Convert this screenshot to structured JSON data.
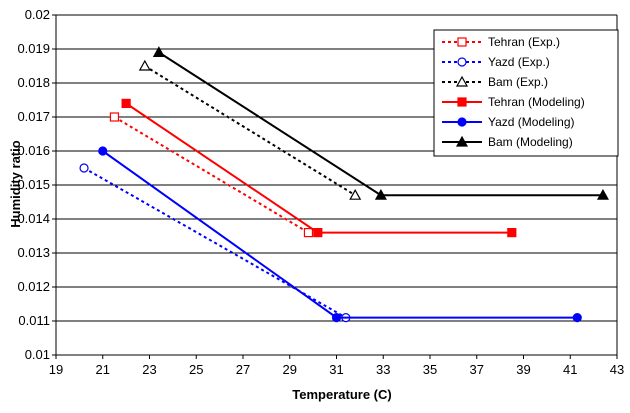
{
  "chart_data": {
    "type": "line",
    "title": "",
    "xlabel": "Temperature (C)",
    "ylabel": "Humidity ratio",
    "xlim": [
      19,
      43
    ],
    "ylim": [
      0.01,
      0.02
    ],
    "x_ticks": [
      "19",
      "21",
      "23",
      "25",
      "27",
      "29",
      "31",
      "33",
      "35",
      "37",
      "39",
      "41",
      "43"
    ],
    "y_ticks": [
      "0.01",
      "0.011",
      "0.012",
      "0.013",
      "0.014",
      "0.015",
      "0.016",
      "0.017",
      "0.018",
      "0.019",
      "0.02"
    ],
    "grid": {
      "horizontal": true,
      "vertical": false
    },
    "legend_position": "top-right",
    "series": [
      {
        "name": "Tehran (Exp.)",
        "color": "#ff0000",
        "dash": "dotted",
        "marker": "square-open",
        "points": [
          [
            21.5,
            0.017
          ],
          [
            29.8,
            0.0136
          ]
        ]
      },
      {
        "name": "Yazd (Exp.)",
        "color": "#0000ff",
        "dash": "dotted",
        "marker": "circle-open",
        "points": [
          [
            20.2,
            0.0155
          ],
          [
            31.4,
            0.0111
          ]
        ]
      },
      {
        "name": "Bam (Exp.)",
        "color": "#000000",
        "dash": "dotted",
        "marker": "triangle-open",
        "points": [
          [
            22.8,
            0.0185
          ],
          [
            31.8,
            0.0147
          ]
        ]
      },
      {
        "name": "Tehran (Modeling)",
        "color": "#ff0000",
        "dash": "solid",
        "marker": "square-filled",
        "points": [
          [
            22.0,
            0.0174
          ],
          [
            30.2,
            0.0136
          ],
          [
            38.5,
            0.0136
          ]
        ]
      },
      {
        "name": "Yazd (Modeling)",
        "color": "#0000ff",
        "dash": "solid",
        "marker": "circle-filled",
        "points": [
          [
            21.0,
            0.016
          ],
          [
            31.0,
            0.0111
          ],
          [
            41.3,
            0.0111
          ]
        ]
      },
      {
        "name": "Bam (Modeling)",
        "color": "#000000",
        "dash": "solid",
        "marker": "triangle-filled",
        "points": [
          [
            23.4,
            0.0189
          ],
          [
            32.9,
            0.0147
          ],
          [
            42.4,
            0.0147
          ]
        ]
      }
    ]
  }
}
